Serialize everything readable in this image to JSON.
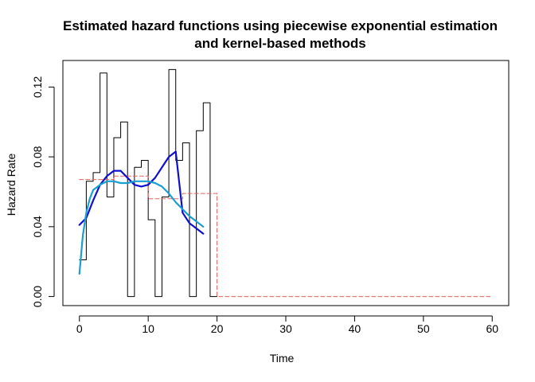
{
  "chart_data": {
    "type": "line",
    "title_lines": [
      "Estimated hazard functions using piecewise exponential estimation",
      "and kernel-based methods"
    ],
    "xlabel": "Time",
    "ylabel": "Hazard Rate",
    "xlim": [
      -2.4,
      62.4
    ],
    "ylim": [
      -0.0052,
      0.1352
    ],
    "x_ticks": [
      0,
      10,
      20,
      30,
      40,
      50,
      60
    ],
    "x_tick_labels": [
      "0",
      "10",
      "20",
      "30",
      "40",
      "50",
      "60"
    ],
    "y_ticks": [
      0.0,
      0.04,
      0.08,
      0.12
    ],
    "y_tick_labels": [
      "0.00",
      "0.04",
      "0.08",
      "0.12"
    ],
    "grid": false,
    "series": [
      {
        "style": "step",
        "color": "#000000",
        "dash": false,
        "breaks": [
          0,
          1,
          2,
          3,
          4,
          5,
          6,
          7,
          8,
          9,
          10,
          11,
          12,
          13,
          14,
          15,
          16,
          17,
          18,
          19,
          20
        ],
        "values": [
          0.021,
          0.066,
          0.071,
          0.128,
          0.057,
          0.091,
          0.1,
          0.0,
          0.074,
          0.078,
          0.044,
          0.0,
          0.057,
          0.13,
          0.078,
          0.088,
          0.0,
          0.095,
          0.111,
          0.0
        ]
      },
      {
        "style": "step",
        "color": "#e8605c",
        "dash": true,
        "breaks": [
          0,
          5,
          10,
          15,
          20,
          60
        ],
        "values": [
          0.067,
          0.069,
          0.056,
          0.059,
          0.0
        ]
      },
      {
        "style": "line",
        "color": "#1010cc",
        "dash": false,
        "x": [
          0,
          1,
          2,
          3,
          4,
          5,
          6,
          7,
          8,
          9,
          10,
          11,
          12,
          13,
          14,
          15,
          16,
          17,
          18
        ],
        "y": [
          0.041,
          0.045,
          0.055,
          0.064,
          0.069,
          0.072,
          0.072,
          0.068,
          0.064,
          0.063,
          0.064,
          0.068,
          0.074,
          0.08,
          0.083,
          0.048,
          0.042,
          0.039,
          0.036
        ]
      },
      {
        "style": "line",
        "color": "#1a9fd0",
        "dash": false,
        "x": [
          0,
          0.5,
          1,
          1.5,
          2,
          3,
          4,
          5,
          6,
          7,
          8,
          9,
          10,
          11,
          12,
          13,
          14,
          15,
          16,
          17,
          18
        ],
        "y": [
          0.013,
          0.035,
          0.048,
          0.056,
          0.061,
          0.064,
          0.066,
          0.066,
          0.065,
          0.065,
          0.066,
          0.066,
          0.066,
          0.065,
          0.063,
          0.059,
          0.054,
          0.05,
          0.046,
          0.043,
          0.04
        ]
      }
    ]
  }
}
